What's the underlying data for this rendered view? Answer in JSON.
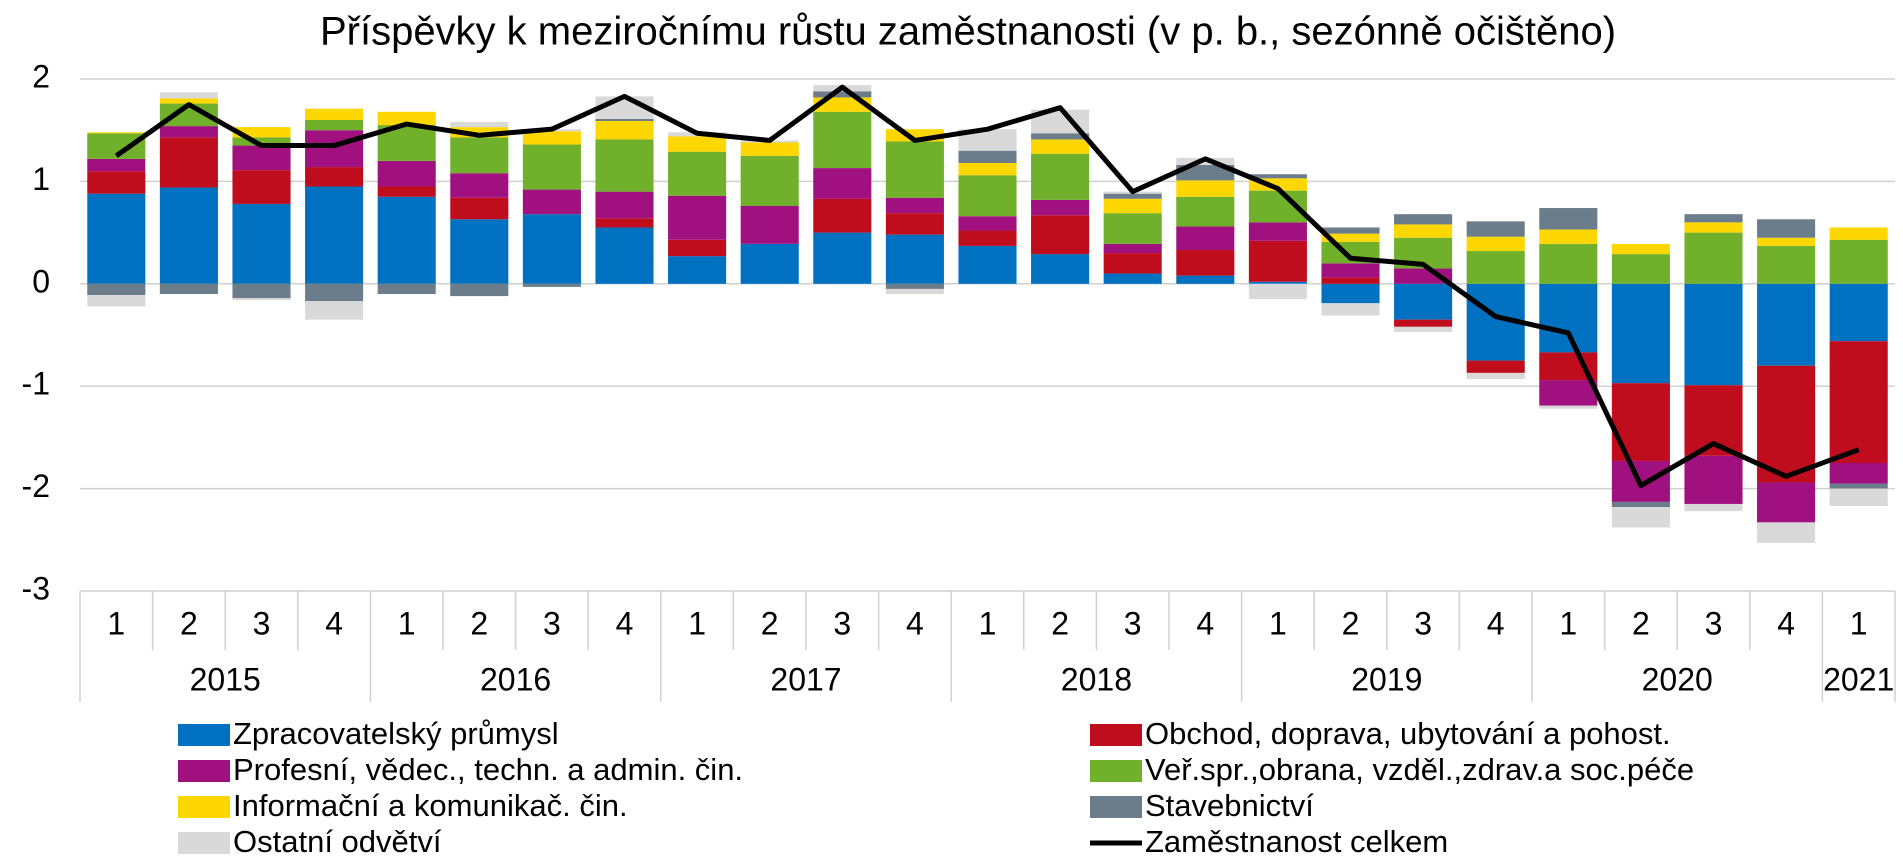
{
  "chart_data": {
    "type": "bar",
    "stacked": true,
    "title": "Příspěvky k meziročnímu růstu zaměstnanosti (v p. b., sezónně očištěno)",
    "categories": [
      "1",
      "2",
      "3",
      "4",
      "1",
      "2",
      "3",
      "4",
      "1",
      "2",
      "3",
      "4",
      "1",
      "2",
      "3",
      "4",
      "1",
      "2",
      "3",
      "4",
      "1",
      "2",
      "3",
      "4",
      "1"
    ],
    "groups": [
      "2015",
      "2016",
      "2017",
      "2018",
      "2019",
      "2020",
      "2021"
    ],
    "ylim": [
      -3,
      2
    ],
    "yticks": [
      -3,
      -2,
      -1,
      0,
      1,
      2
    ],
    "grid": true,
    "series": [
      {
        "name": "Zpracovatelský průmysl",
        "color": "#0070c0",
        "values": [
          0.88,
          0.94,
          0.78,
          0.95,
          0.85,
          0.63,
          0.68,
          0.55,
          0.27,
          0.39,
          0.5,
          0.48,
          0.37,
          0.29,
          0.1,
          0.08,
          0.02,
          -0.19,
          -0.35,
          -0.75,
          -0.67,
          -0.97,
          -0.99,
          -0.8,
          -0.56
        ]
      },
      {
        "name": "Obchod, doprava, ubytování a pohost.",
        "color": "#c00d1e",
        "values": [
          0.22,
          0.49,
          0.33,
          0.19,
          0.1,
          0.21,
          0,
          0.09,
          0.16,
          0,
          0.33,
          0.21,
          0.15,
          0.38,
          0.2,
          0.25,
          0.4,
          0.06,
          -0.07,
          -0.12,
          -0.27,
          -0.76,
          -0.69,
          -1.14,
          -1.19
        ]
      },
      {
        "name": "Profesní, vědec., techn. a admin. čin.",
        "color": "#a0117f",
        "values": [
          0.12,
          0.11,
          0.24,
          0.36,
          0.25,
          0.24,
          0.24,
          0.26,
          0.43,
          0.37,
          0.3,
          0.15,
          0.14,
          0.15,
          0.09,
          0.23,
          0.18,
          0.14,
          0.15,
          0,
          -0.25,
          -0.4,
          -0.47,
          -0.39,
          -0.2
        ]
      },
      {
        "name": "Veř.spr.,obrana, vzděl.,zdrav.a soc.péče",
        "color": "#70b02a",
        "values": [
          0.25,
          0.22,
          0.08,
          0.1,
          0.35,
          0.35,
          0.44,
          0.51,
          0.43,
          0.49,
          0.55,
          0.55,
          0.4,
          0.45,
          0.3,
          0.29,
          0.31,
          0.21,
          0.3,
          0.32,
          0.39,
          0.29,
          0.5,
          0.37,
          0.43
        ]
      },
      {
        "name": "Informační a komunikač. čin.",
        "color": "#ffd700",
        "values": [
          0.01,
          0.05,
          0.1,
          0.11,
          0.13,
          0.1,
          0.13,
          0.18,
          0.15,
          0.13,
          0.14,
          0.12,
          0.12,
          0.14,
          0.14,
          0.16,
          0.12,
          0.08,
          0.13,
          0.14,
          0.14,
          0.1,
          0.1,
          0.08,
          0.12
        ]
      },
      {
        "name": "Stavebnictví",
        "color": "#6b7d8a",
        "values": [
          -0.11,
          -0.1,
          -0.14,
          -0.17,
          -0.1,
          -0.12,
          -0.03,
          0.02,
          0,
          0,
          0.06,
          -0.05,
          0.12,
          0.06,
          0.05,
          0.15,
          0.04,
          0.06,
          0.1,
          0.15,
          0.21,
          -0.05,
          0.08,
          0.18,
          -0.05
        ]
      },
      {
        "name": "Ostatní odvětví",
        "color": "#d9d9d9",
        "values": [
          -0.11,
          0.06,
          -0.02,
          -0.18,
          0,
          0.05,
          0.02,
          0.22,
          0.04,
          0.02,
          0.06,
          -0.05,
          0.21,
          0.23,
          0.02,
          0.07,
          -0.15,
          -0.12,
          -0.05,
          -0.06,
          -0.03,
          -0.2,
          -0.07,
          -0.2,
          -0.17
        ]
      },
      {
        "name": "Zaměstnanost celkem",
        "type": "line",
        "color": "#000000",
        "values": [
          1.25,
          1.75,
          1.35,
          1.35,
          1.56,
          1.45,
          1.51,
          1.83,
          1.47,
          1.4,
          1.92,
          1.4,
          1.51,
          1.72,
          0.9,
          1.22,
          0.93,
          0.25,
          0.19,
          -0.32,
          -0.48,
          -1.97,
          -1.56,
          -1.88,
          -1.62
        ]
      }
    ]
  }
}
